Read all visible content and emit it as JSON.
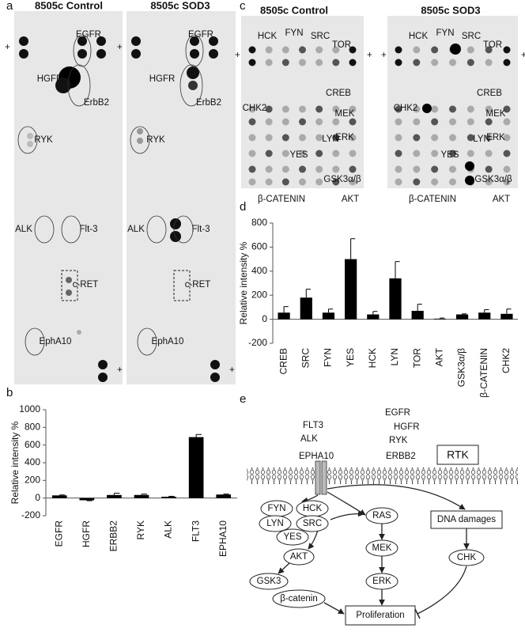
{
  "panel_labels": [
    "a",
    "b",
    "c",
    "d",
    "e"
  ],
  "plus": "+",
  "blots_a": {
    "titles": [
      "8505c Control",
      "8505c SOD3"
    ],
    "labels": [
      "EGFR",
      "HGFR",
      "ErbB2",
      "RYK",
      "ALK",
      "Flt-3",
      "c-RET",
      "EphA10"
    ]
  },
  "blots_c": {
    "titles": [
      "8505c Control",
      "8505c SOD3"
    ],
    "labels": [
      "HCK",
      "FYN",
      "SRC",
      "TOR",
      "CREB",
      "CHK2",
      "MEK",
      "YES",
      "LYN",
      "ERK",
      "GSK3α/β",
      "β-CATENIN",
      "AKT"
    ]
  },
  "chart_data": [
    {
      "type": "bar",
      "ylabel": "Relative intensity %",
      "color": "#000000",
      "categories": [
        "EGFR",
        "HGFR",
        "ERBB2",
        "RYK",
        "ALK",
        "FLT3",
        "EPHA10"
      ],
      "values": [
        30,
        -25,
        35,
        35,
        15,
        690,
        40
      ],
      "errors": [
        5,
        5,
        20,
        10,
        5,
        30,
        5
      ],
      "ylim": [
        -200,
        1000
      ],
      "yticks": [
        -200,
        0,
        200,
        400,
        600,
        800,
        1000
      ]
    },
    {
      "type": "bar",
      "ylabel": "Relative intensity %",
      "color": "#000000",
      "categories": [
        "CREB",
        "SRC",
        "FYN",
        "YES",
        "HCK",
        "LYN",
        "TOR",
        "AKT",
        "GSK3α/β",
        "β-CATENIN",
        "CHK2"
      ],
      "values": [
        55,
        180,
        55,
        500,
        40,
        340,
        70,
        5,
        40,
        55,
        45
      ],
      "errors": [
        50,
        70,
        30,
        170,
        25,
        140,
        55,
        5,
        5,
        25,
        40
      ],
      "ylim": [
        -200,
        800
      ],
      "yticks": [
        -200,
        0,
        200,
        400,
        600,
        800
      ]
    }
  ],
  "diagram": {
    "receptors": [
      "EGFR",
      "FLT3",
      "HGFR",
      "ALK",
      "RYK",
      "EPHA10",
      "ERBB2"
    ],
    "rtk": "RTK",
    "nodes": [
      "FYN",
      "HCK",
      "LYN",
      "SRC",
      "YES",
      "AKT",
      "GSK3",
      "β-catenin",
      "RAS",
      "MEK",
      "ERK",
      "DNA damages",
      "CHK",
      "Proliferation"
    ]
  }
}
